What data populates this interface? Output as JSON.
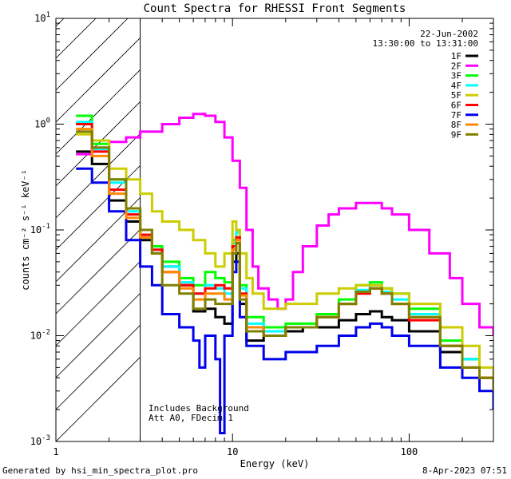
{
  "chart_data": {
    "type": "line",
    "title": "Count Spectra for RHESSI Front Segments",
    "xlabel": "Energy (keV)",
    "ylabel": "counts cm⁻² s⁻¹ keV⁻¹",
    "xscale": "log",
    "yscale": "log",
    "xlim": [
      1,
      300
    ],
    "ylim": [
      0.001,
      10
    ],
    "x_ticks": [
      {
        "v": 1,
        "label": "1"
      },
      {
        "v": 10,
        "label": "10"
      },
      {
        "v": 100,
        "label": "100"
      }
    ],
    "y_ticks": [
      {
        "v": 0.001,
        "base": "10",
        "exp": "-3"
      },
      {
        "v": 0.01,
        "base": "10",
        "exp": "-2"
      },
      {
        "v": 0.1,
        "base": "10",
        "exp": "-1"
      },
      {
        "v": 1,
        "base": "10",
        "exp": "0"
      },
      {
        "v": 10,
        "base": "10",
        "exp": "1"
      }
    ],
    "excluded_region": {
      "from": 1,
      "to": 3
    },
    "date": "22-Jun-2002",
    "time_range": "13:30:00 to 13:31:00",
    "annotations": [
      "Includes Background",
      "Att A0, FDecim 1"
    ],
    "series": [
      {
        "name": "1F",
        "color": "#000000",
        "points": [
          [
            1.3,
            0.55
          ],
          [
            1.6,
            0.42
          ],
          [
            2.0,
            0.19
          ],
          [
            2.5,
            0.12
          ],
          [
            3.0,
            0.08
          ],
          [
            3.5,
            0.06
          ],
          [
            4.0,
            0.045
          ],
          [
            5.0,
            0.03
          ],
          [
            6.0,
            0.017
          ],
          [
            7.0,
            0.018
          ],
          [
            8.0,
            0.015
          ],
          [
            9.0,
            0.013
          ],
          [
            10.0,
            0.05
          ],
          [
            10.5,
            0.06
          ],
          [
            11.0,
            0.02
          ],
          [
            12.0,
            0.009
          ],
          [
            15.0,
            0.01
          ],
          [
            20.0,
            0.011
          ],
          [
            25.0,
            0.012
          ],
          [
            30.0,
            0.012
          ],
          [
            40.0,
            0.014
          ],
          [
            50.0,
            0.016
          ],
          [
            60.0,
            0.017
          ],
          [
            70.0,
            0.015
          ],
          [
            80.0,
            0.014
          ],
          [
            100.0,
            0.011
          ],
          [
            150.0,
            0.007
          ],
          [
            200.0,
            0.006
          ],
          [
            250.0,
            0.004
          ],
          [
            300.0,
            0.003
          ]
        ]
      },
      {
        "name": "2F",
        "color": "#ff00ff",
        "points": [
          [
            1.3,
            0.52
          ],
          [
            1.6,
            0.6
          ],
          [
            2.0,
            0.68
          ],
          [
            2.5,
            0.75
          ],
          [
            3.0,
            0.85
          ],
          [
            4.0,
            1.0
          ],
          [
            5.0,
            1.15
          ],
          [
            6.0,
            1.25
          ],
          [
            7.0,
            1.2
          ],
          [
            8.0,
            1.05
          ],
          [
            9.0,
            0.75
          ],
          [
            10.0,
            0.45
          ],
          [
            11.0,
            0.25
          ],
          [
            12.0,
            0.1
          ],
          [
            13.0,
            0.045
          ],
          [
            14.0,
            0.028
          ],
          [
            16.0,
            0.022
          ],
          [
            18.0,
            0.018
          ],
          [
            20.0,
            0.022
          ],
          [
            22.0,
            0.04
          ],
          [
            25.0,
            0.07
          ],
          [
            30.0,
            0.11
          ],
          [
            35.0,
            0.14
          ],
          [
            40.0,
            0.16
          ],
          [
            50.0,
            0.18
          ],
          [
            60.0,
            0.18
          ],
          [
            70.0,
            0.16
          ],
          [
            80.0,
            0.14
          ],
          [
            100.0,
            0.1
          ],
          [
            130.0,
            0.06
          ],
          [
            170.0,
            0.035
          ],
          [
            200.0,
            0.02
          ],
          [
            250.0,
            0.012
          ],
          [
            300.0,
            0.01
          ]
        ]
      },
      {
        "name": "3F",
        "color": "#00ff00",
        "points": [
          [
            1.3,
            1.2
          ],
          [
            1.6,
            0.65
          ],
          [
            2.0,
            0.3
          ],
          [
            2.5,
            0.16
          ],
          [
            3.0,
            0.1
          ],
          [
            3.5,
            0.07
          ],
          [
            4.0,
            0.05
          ],
          [
            5.0,
            0.035
          ],
          [
            6.0,
            0.03
          ],
          [
            7.0,
            0.04
          ],
          [
            8.0,
            0.035
          ],
          [
            9.0,
            0.032
          ],
          [
            10.0,
            0.08
          ],
          [
            10.5,
            0.1
          ],
          [
            11.0,
            0.03
          ],
          [
            12.0,
            0.015
          ],
          [
            15.0,
            0.012
          ],
          [
            20.0,
            0.013
          ],
          [
            30.0,
            0.016
          ],
          [
            40.0,
            0.022
          ],
          [
            50.0,
            0.03
          ],
          [
            60.0,
            0.032
          ],
          [
            70.0,
            0.028
          ],
          [
            80.0,
            0.025
          ],
          [
            100.0,
            0.018
          ],
          [
            150.0,
            0.009
          ],
          [
            200.0,
            0.006
          ],
          [
            250.0,
            0.004
          ],
          [
            300.0,
            0.003
          ]
        ]
      },
      {
        "name": "4F",
        "color": "#00ffff",
        "points": [
          [
            1.3,
            1.05
          ],
          [
            1.6,
            0.58
          ],
          [
            2.0,
            0.28
          ],
          [
            2.5,
            0.15
          ],
          [
            3.0,
            0.09
          ],
          [
            3.5,
            0.065
          ],
          [
            4.0,
            0.045
          ],
          [
            5.0,
            0.032
          ],
          [
            6.0,
            0.025
          ],
          [
            7.0,
            0.03
          ],
          [
            8.0,
            0.028
          ],
          [
            9.0,
            0.025
          ],
          [
            10.0,
            0.075
          ],
          [
            10.5,
            0.095
          ],
          [
            11.0,
            0.028
          ],
          [
            12.0,
            0.013
          ],
          [
            15.0,
            0.011
          ],
          [
            20.0,
            0.012
          ],
          [
            30.0,
            0.015
          ],
          [
            40.0,
            0.02
          ],
          [
            50.0,
            0.027
          ],
          [
            60.0,
            0.03
          ],
          [
            70.0,
            0.026
          ],
          [
            80.0,
            0.022
          ],
          [
            100.0,
            0.016
          ],
          [
            150.0,
            0.008
          ],
          [
            200.0,
            0.006
          ],
          [
            250.0,
            0.004
          ],
          [
            300.0,
            0.003
          ]
        ]
      },
      {
        "name": "5F",
        "color": "#cccc00",
        "points": [
          [
            1.3,
            0.8
          ],
          [
            1.6,
            0.7
          ],
          [
            2.0,
            0.38
          ],
          [
            2.5,
            0.3
          ],
          [
            3.0,
            0.22
          ],
          [
            3.5,
            0.15
          ],
          [
            4.0,
            0.12
          ],
          [
            5.0,
            0.1
          ],
          [
            6.0,
            0.08
          ],
          [
            7.0,
            0.06
          ],
          [
            8.0,
            0.045
          ],
          [
            9.0,
            0.06
          ],
          [
            10.0,
            0.12
          ],
          [
            10.5,
            0.1
          ],
          [
            11.0,
            0.06
          ],
          [
            12.0,
            0.035
          ],
          [
            13.0,
            0.025
          ],
          [
            15.0,
            0.018
          ],
          [
            20.0,
            0.02
          ],
          [
            30.0,
            0.025
          ],
          [
            40.0,
            0.028
          ],
          [
            50.0,
            0.03
          ],
          [
            60.0,
            0.03
          ],
          [
            70.0,
            0.028
          ],
          [
            80.0,
            0.025
          ],
          [
            100.0,
            0.02
          ],
          [
            150.0,
            0.012
          ],
          [
            200.0,
            0.008
          ],
          [
            250.0,
            0.005
          ],
          [
            300.0,
            0.004
          ]
        ]
      },
      {
        "name": "6F",
        "color": "#ff0000",
        "points": [
          [
            1.3,
            1.0
          ],
          [
            1.6,
            0.55
          ],
          [
            2.0,
            0.24
          ],
          [
            2.5,
            0.14
          ],
          [
            3.0,
            0.09
          ],
          [
            3.5,
            0.065
          ],
          [
            4.0,
            0.04
          ],
          [
            5.0,
            0.03
          ],
          [
            6.0,
            0.025
          ],
          [
            7.0,
            0.028
          ],
          [
            8.0,
            0.03
          ],
          [
            9.0,
            0.028
          ],
          [
            10.0,
            0.07
          ],
          [
            10.5,
            0.085
          ],
          [
            11.0,
            0.025
          ],
          [
            12.0,
            0.012
          ],
          [
            15.0,
            0.01
          ],
          [
            20.0,
            0.012
          ],
          [
            30.0,
            0.015
          ],
          [
            40.0,
            0.02
          ],
          [
            50.0,
            0.025
          ],
          [
            60.0,
            0.028
          ],
          [
            70.0,
            0.025
          ],
          [
            80.0,
            0.02
          ],
          [
            100.0,
            0.014
          ],
          [
            150.0,
            0.008
          ],
          [
            200.0,
            0.005
          ],
          [
            250.0,
            0.004
          ],
          [
            300.0,
            0.003
          ]
        ]
      },
      {
        "name": "7F",
        "color": "#0000ee",
        "points": [
          [
            1.3,
            0.38
          ],
          [
            1.6,
            0.28
          ],
          [
            2.0,
            0.15
          ],
          [
            2.5,
            0.08
          ],
          [
            3.0,
            0.045
          ],
          [
            3.5,
            0.03
          ],
          [
            4.0,
            0.016
          ],
          [
            5.0,
            0.012
          ],
          [
            6.0,
            0.009
          ],
          [
            6.5,
            0.005
          ],
          [
            7.0,
            0.01
          ],
          [
            8.0,
            0.006
          ],
          [
            8.5,
            0.0012
          ],
          [
            9.0,
            0.01
          ],
          [
            10.0,
            0.04
          ],
          [
            10.5,
            0.05
          ],
          [
            11.0,
            0.015
          ],
          [
            12.0,
            0.008
          ],
          [
            15.0,
            0.006
          ],
          [
            20.0,
            0.007
          ],
          [
            30.0,
            0.008
          ],
          [
            40.0,
            0.01
          ],
          [
            50.0,
            0.012
          ],
          [
            60.0,
            0.013
          ],
          [
            70.0,
            0.012
          ],
          [
            80.0,
            0.01
          ],
          [
            100.0,
            0.008
          ],
          [
            150.0,
            0.005
          ],
          [
            200.0,
            0.004
          ],
          [
            250.0,
            0.003
          ],
          [
            300.0,
            0.002
          ]
        ]
      },
      {
        "name": "8F",
        "color": "#ff8800",
        "points": [
          [
            1.3,
            0.9
          ],
          [
            1.6,
            0.5
          ],
          [
            2.0,
            0.22
          ],
          [
            2.5,
            0.13
          ],
          [
            3.0,
            0.085
          ],
          [
            3.5,
            0.06
          ],
          [
            4.0,
            0.04
          ],
          [
            5.0,
            0.028
          ],
          [
            6.0,
            0.022
          ],
          [
            7.0,
            0.025
          ],
          [
            8.0,
            0.025
          ],
          [
            9.0,
            0.022
          ],
          [
            10.0,
            0.065
          ],
          [
            10.5,
            0.08
          ],
          [
            11.0,
            0.024
          ],
          [
            12.0,
            0.012
          ],
          [
            15.0,
            0.01
          ],
          [
            20.0,
            0.012
          ],
          [
            30.0,
            0.015
          ],
          [
            40.0,
            0.02
          ],
          [
            50.0,
            0.026
          ],
          [
            60.0,
            0.028
          ],
          [
            70.0,
            0.025
          ],
          [
            80.0,
            0.02
          ],
          [
            100.0,
            0.015
          ],
          [
            150.0,
            0.008
          ],
          [
            200.0,
            0.005
          ],
          [
            250.0,
            0.004
          ],
          [
            300.0,
            0.003
          ]
        ]
      },
      {
        "name": "9F",
        "color": "#808000",
        "points": [
          [
            1.3,
            0.85
          ],
          [
            1.6,
            0.6
          ],
          [
            2.0,
            0.3
          ],
          [
            2.5,
            0.16
          ],
          [
            3.0,
            0.1
          ],
          [
            3.5,
            0.06
          ],
          [
            4.0,
            0.03
          ],
          [
            5.0,
            0.025
          ],
          [
            6.0,
            0.018
          ],
          [
            7.0,
            0.022
          ],
          [
            8.0,
            0.02
          ],
          [
            9.0,
            0.02
          ],
          [
            10.0,
            0.06
          ],
          [
            10.5,
            0.075
          ],
          [
            11.0,
            0.022
          ],
          [
            12.0,
            0.011
          ],
          [
            15.0,
            0.01
          ],
          [
            20.0,
            0.012
          ],
          [
            30.0,
            0.015
          ],
          [
            40.0,
            0.02
          ],
          [
            50.0,
            0.026
          ],
          [
            60.0,
            0.028
          ],
          [
            70.0,
            0.025
          ],
          [
            80.0,
            0.02
          ],
          [
            100.0,
            0.015
          ],
          [
            150.0,
            0.008
          ],
          [
            200.0,
            0.005
          ],
          [
            250.0,
            0.004
          ],
          [
            300.0,
            0.003
          ]
        ]
      }
    ]
  },
  "footer": {
    "generated_by": "Generated by hsi_min_spectra_plot.pro",
    "timestamp": "8-Apr-2023 07:51"
  }
}
